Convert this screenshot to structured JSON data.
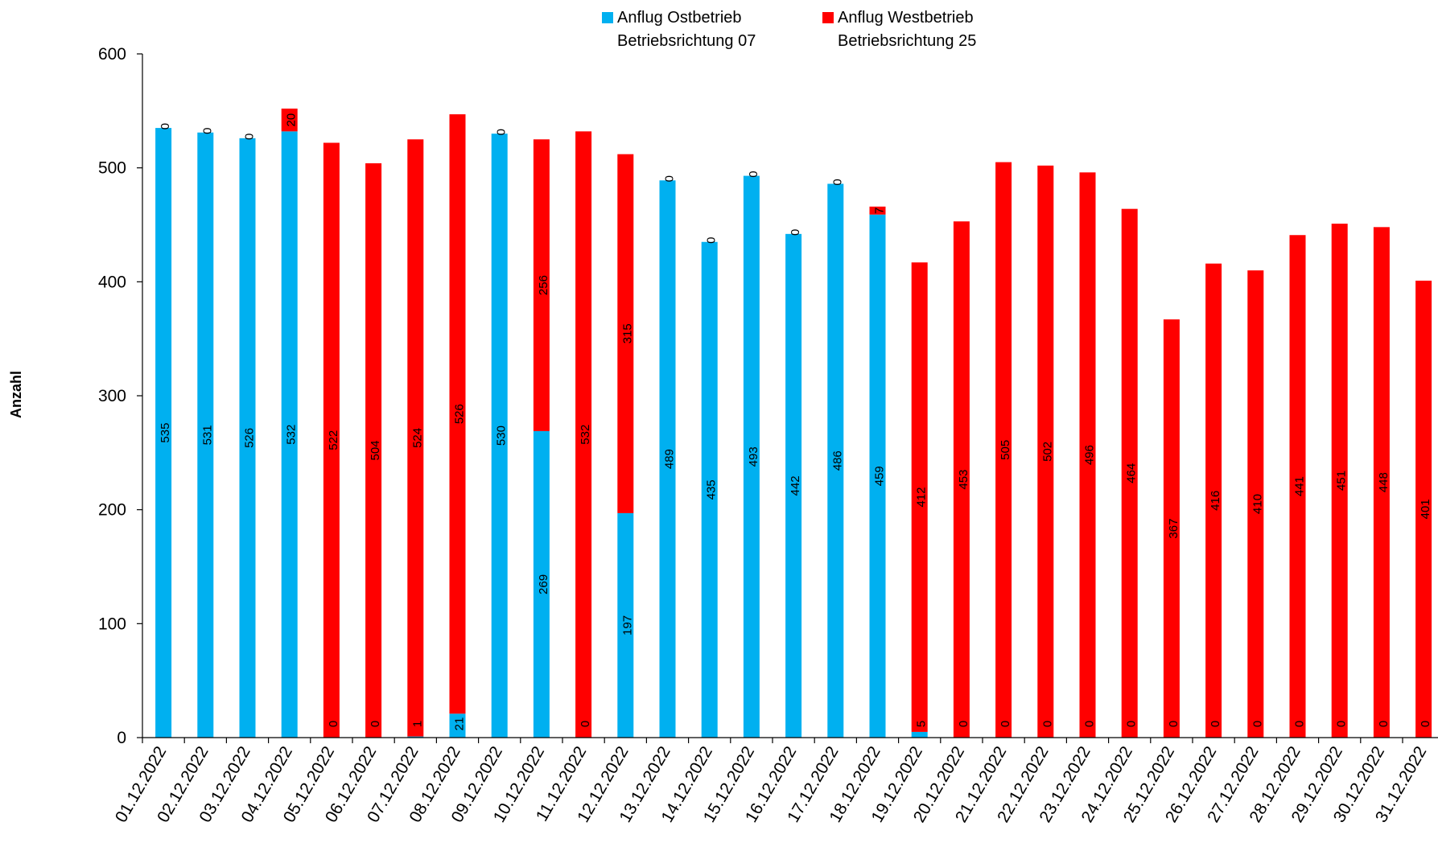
{
  "chart_data": {
    "type": "bar",
    "stacked": true,
    "ylabel": "Anzahl",
    "xlabel": "",
    "ylim": [
      0,
      600
    ],
    "yticks": [
      0,
      100,
      200,
      300,
      400,
      500,
      600
    ],
    "legend_position": "top-center",
    "grid": false,
    "categories": [
      "01.12.2022",
      "02.12.2022",
      "03.12.2022",
      "04.12.2022",
      "05.12.2022",
      "06.12.2022",
      "07.12.2022",
      "08.12.2022",
      "09.12.2022",
      "10.12.2022",
      "11.12.2022",
      "12.12.2022",
      "13.12.2022",
      "14.12.2022",
      "15.12.2022",
      "16.12.2022",
      "17.12.2022",
      "18.12.2022",
      "19.12.2022",
      "20.12.2022",
      "21.12.2022",
      "22.12.2022",
      "23.12.2022",
      "24.12.2022",
      "25.12.2022",
      "26.12.2022",
      "27.12.2022",
      "28.12.2022",
      "29.12.2022",
      "30.12.2022",
      "31.12.2022"
    ],
    "series": [
      {
        "name_line1": "Anflug Ostbetrieb",
        "name_line2": "Betriebsrichtung 07",
        "color": "#00b0f0",
        "values": [
          535,
          531,
          526,
          532,
          0,
          0,
          1,
          21,
          530,
          269,
          0,
          197,
          489,
          435,
          493,
          442,
          486,
          459,
          5,
          0,
          0,
          0,
          0,
          0,
          0,
          0,
          0,
          0,
          0,
          0,
          0
        ]
      },
      {
        "name_line1": "Anflug Westbetrieb",
        "name_line2": "Betriebsrichtung 25",
        "color": "#ff0000",
        "values": [
          0,
          0,
          0,
          20,
          522,
          504,
          524,
          526,
          0,
          256,
          532,
          315,
          0,
          0,
          0,
          0,
          0,
          7,
          412,
          453,
          505,
          502,
          496,
          464,
          367,
          416,
          410,
          441,
          451,
          448,
          401
        ]
      }
    ]
  }
}
